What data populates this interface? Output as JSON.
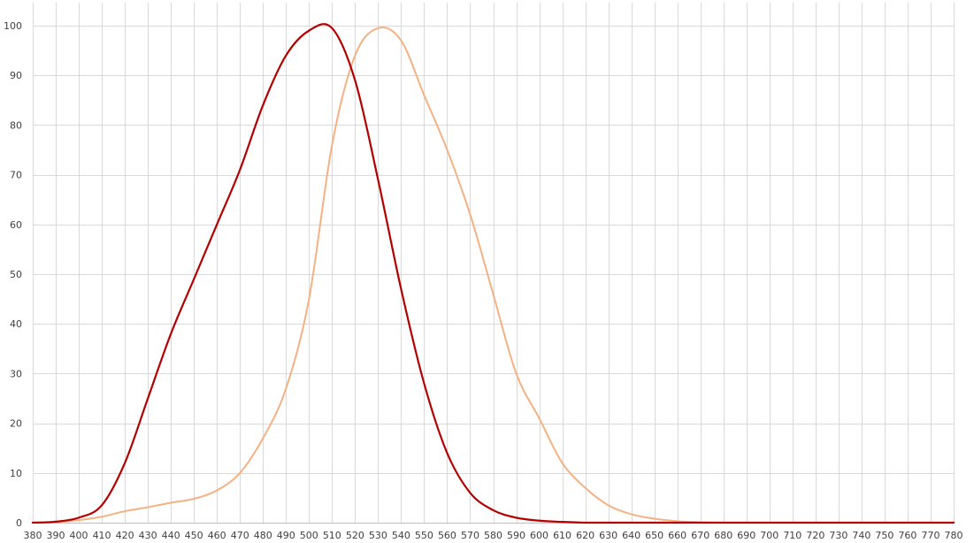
{
  "chart_data": {
    "type": "line",
    "title": "",
    "xlabel": "",
    "ylabel": "",
    "xlim": [
      380,
      780
    ],
    "ylim": [
      0,
      100
    ],
    "x_ticks": [
      380,
      390,
      400,
      410,
      420,
      430,
      440,
      450,
      460,
      470,
      480,
      490,
      500,
      510,
      520,
      530,
      540,
      550,
      560,
      570,
      580,
      590,
      600,
      610,
      620,
      630,
      640,
      650,
      660,
      670,
      680,
      690,
      700,
      710,
      720,
      730,
      740,
      750,
      760,
      770,
      780
    ],
    "y_ticks": [
      0,
      10,
      20,
      30,
      40,
      50,
      60,
      70,
      80,
      90,
      100
    ],
    "grid": true,
    "legend": "none",
    "x": [
      380,
      390,
      400,
      410,
      420,
      430,
      440,
      450,
      460,
      470,
      480,
      490,
      500,
      510,
      520,
      530,
      540,
      550,
      560,
      570,
      580,
      590,
      600,
      610,
      620,
      630,
      640,
      650,
      660,
      670,
      680,
      690,
      700,
      710,
      720,
      730,
      740,
      750,
      760,
      770,
      780
    ],
    "series": [
      {
        "color": "#b30000",
        "values": [
          0.0,
          0.2,
          1.0,
          3.5,
          12,
          25,
          38,
          49,
          60,
          71,
          84,
          94,
          99,
          99.5,
          89,
          69,
          47,
          28,
          14,
          6,
          2.5,
          1,
          0.4,
          0.15,
          0,
          0,
          0,
          0,
          0,
          0,
          0,
          0,
          0,
          0,
          0,
          0,
          0,
          0,
          0,
          0,
          0
        ]
      },
      {
        "color": "#f4b183",
        "values": [
          0.0,
          0.1,
          0.5,
          1.2,
          2.3,
          3.1,
          4.0,
          4.8,
          6.5,
          10,
          17,
          27,
          45,
          76,
          94,
          99.5,
          97,
          86,
          75,
          62,
          46,
          30,
          21,
          12,
          7,
          3.5,
          1.7,
          0.8,
          0.3,
          0.1,
          0,
          0,
          0,
          0,
          0,
          0,
          0,
          0,
          0,
          0,
          0
        ]
      }
    ]
  }
}
